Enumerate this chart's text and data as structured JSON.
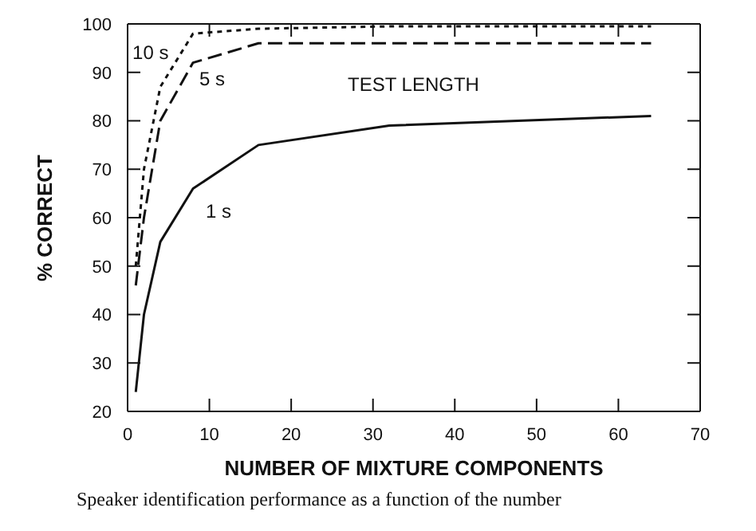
{
  "chart_data": {
    "type": "line",
    "xlabel": "NUMBER OF MIXTURE COMPONENTS",
    "ylabel": "% CORRECT",
    "x": [
      1,
      2,
      4,
      8,
      16,
      32,
      64
    ],
    "series": [
      {
        "name": "10 s",
        "color": "#111111",
        "line_style": "dotted",
        "values": [
          50,
          70,
          87,
          98,
          99,
          99.5,
          99.5
        ]
      },
      {
        "name": "5 s",
        "color": "#111111",
        "line_style": "dashed",
        "values": [
          46,
          60,
          80,
          92,
          96,
          96,
          96
        ]
      },
      {
        "name": "1 s",
        "color": "#111111",
        "line_style": "solid",
        "values": [
          24,
          40,
          55,
          66,
          75,
          79,
          81
        ]
      }
    ],
    "xlim": [
      0,
      70
    ],
    "xticks": [
      0,
      10,
      20,
      30,
      40,
      50,
      60,
      70
    ],
    "ylim": [
      20,
      100
    ],
    "yticks": [
      20,
      30,
      40,
      50,
      60,
      70,
      80,
      90,
      100
    ],
    "marker": "none",
    "annotations": [
      "TEST LENGTH",
      "Speaker identification performance as a function of the number"
    ]
  }
}
